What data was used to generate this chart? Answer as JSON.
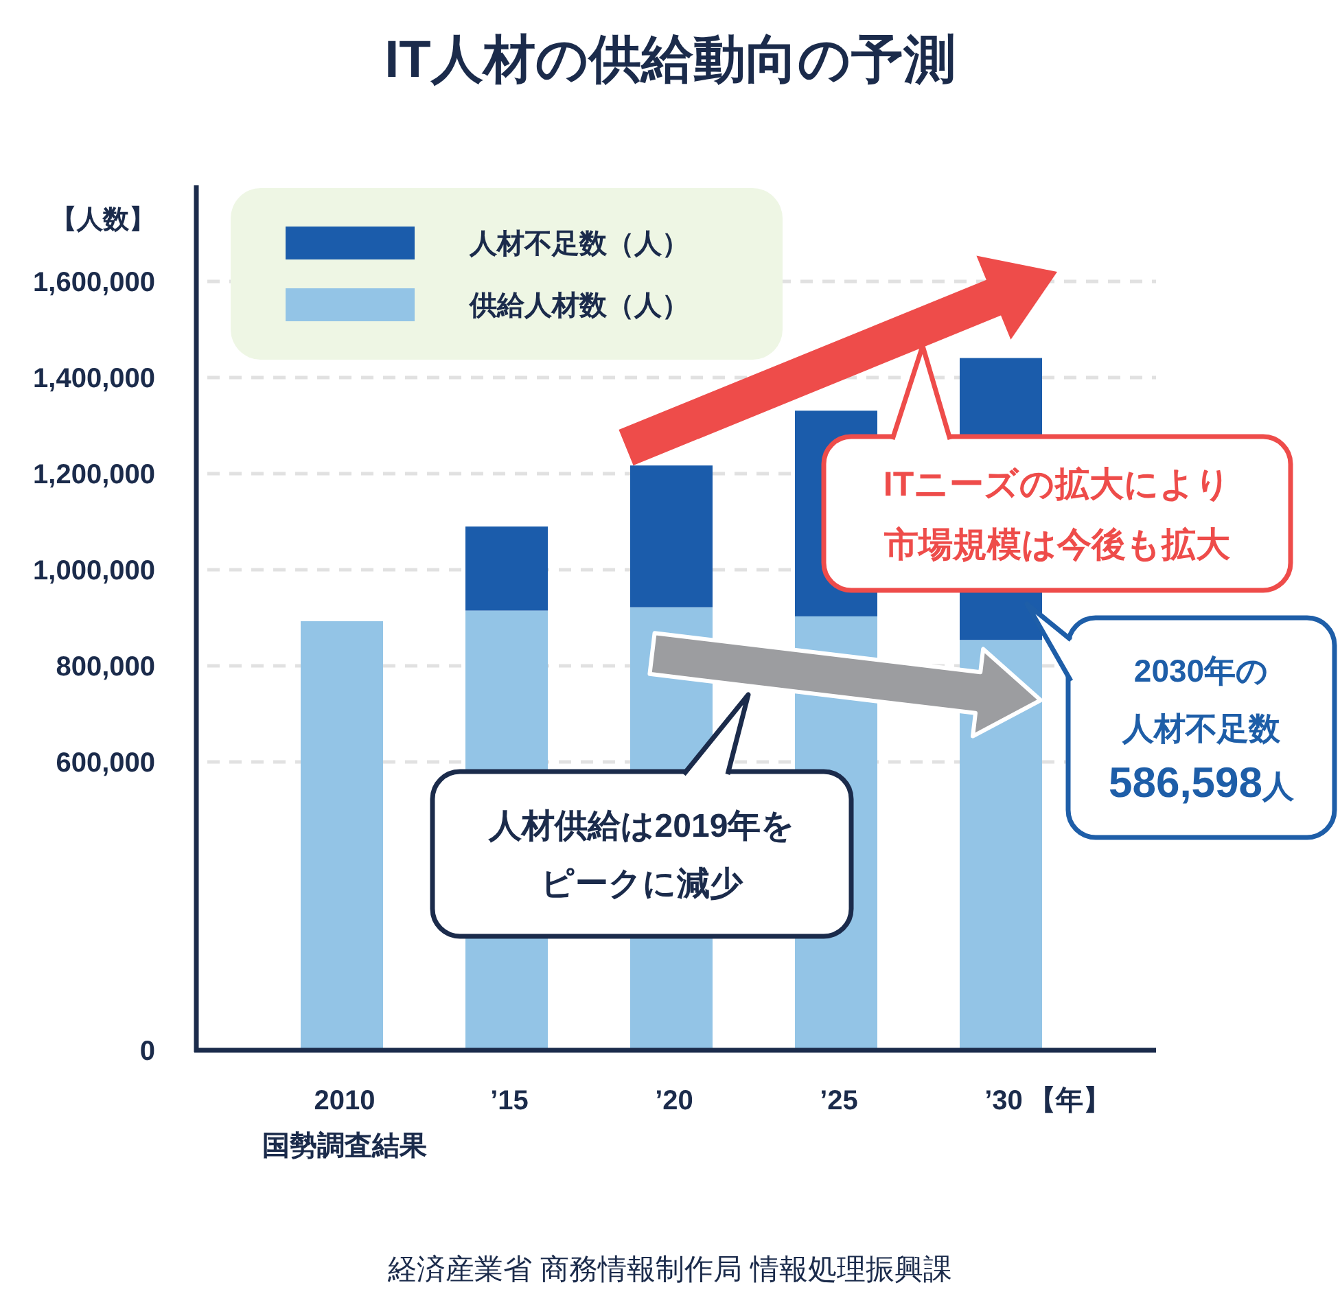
{
  "chart_data": {
    "type": "bar",
    "title": "IT人材の供給動向の予測",
    "ylabel": "【人数】",
    "xlabel": "【年】",
    "categories": [
      "2010\n国勢調査結果",
      "’15",
      "’20",
      "’25",
      "’30"
    ],
    "stacked": true,
    "series": [
      {
        "name": "供給人材数（人）",
        "color": "#93c4e6",
        "values": [
          893000,
          915000,
          922000,
          903000,
          854000
        ]
      },
      {
        "name": "人材不足数（人）",
        "color": "#1b5cab",
        "values": [
          null,
          175000,
          295000,
          428000,
          586598
        ]
      }
    ],
    "ylim": [
      0,
      1800000
    ],
    "yticks": [
      0,
      {
        "value": 600000,
        "label": "600,000"
      },
      {
        "value": 800000,
        "label": "800,000"
      },
      {
        "value": 1000000,
        "label": "1,000,000"
      },
      {
        "value": 1200000,
        "label": "1,200,000"
      },
      {
        "value": 1400000,
        "label": "1,400,000"
      },
      {
        "value": 1600000,
        "label": "1,600,000"
      }
    ],
    "grid": "y",
    "legend": "top left",
    "annotations": [
      "ITニーズの拡大により市場規模は今後も拡大",
      "人材供給は2019年をピークに減少",
      "2030年の人材不足数586,598人",
      "経済産業省 商務情報制作局 情報処理振興課"
    ]
  }
}
